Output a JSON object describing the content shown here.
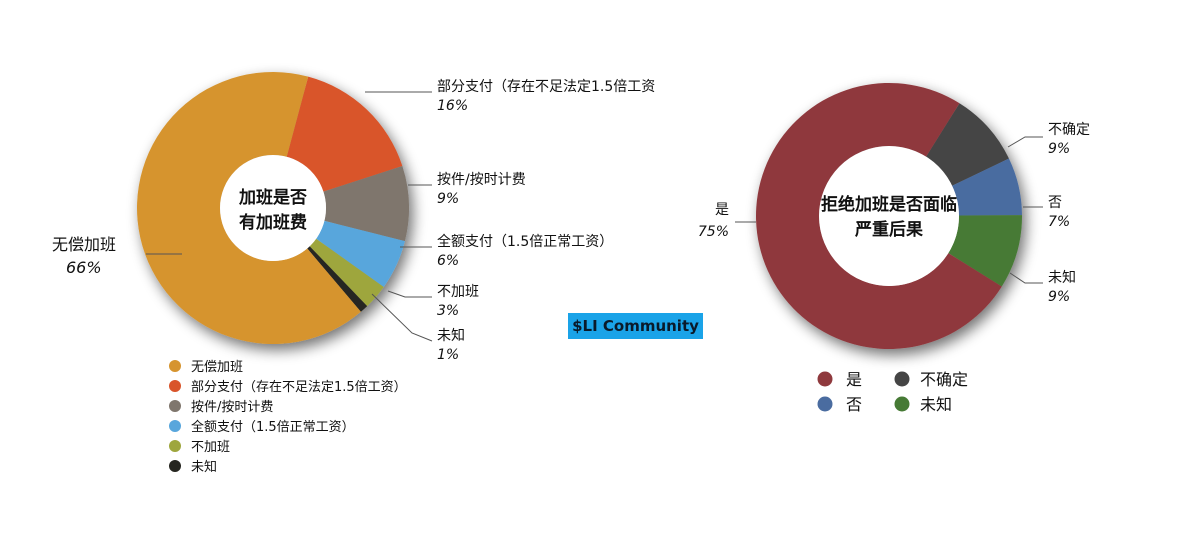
{
  "badge": "$LI Community",
  "chart_data": [
    {
      "type": "donut",
      "title": "加班是否有加班费",
      "title_lines": [
        "加班是否",
        "有加班费"
      ],
      "slices": [
        {
          "label": "无偿加班",
          "legend_label": "无偿加班",
          "value": 66,
          "pct_text": "66%",
          "color": "#d6942f"
        },
        {
          "label": "部分支付（存在不足法定1.5倍工资",
          "legend_label": "部分支付（存在不足法定1.5倍工资）",
          "value": 16,
          "pct_text": "16%",
          "color": "#d9542a"
        },
        {
          "label": "按件/按时计费",
          "legend_label": "按件/按时计费",
          "value": 9,
          "pct_text": "9%",
          "color": "#7f766d"
        },
        {
          "label": "全额支付（1.5倍正常工资）",
          "legend_label": "全额支付（1.5倍正常工资）",
          "value": 6,
          "pct_text": "6%",
          "color": "#58a6dc"
        },
        {
          "label": "不加班",
          "legend_label": "不加班",
          "value": 3,
          "pct_text": "3%",
          "color": "#9ea63d"
        },
        {
          "label": "未知",
          "legend_label": "未知",
          "value": 1,
          "pct_text": "1%",
          "color": "#262620"
        }
      ],
      "legend_placement": "bottom"
    },
    {
      "type": "donut",
      "title": "拒绝加班是否面临严重后果",
      "title_lines": [
        "拒绝加班是否面临",
        "严重后果"
      ],
      "slices": [
        {
          "label": "是",
          "value": 75,
          "pct_text": "75%",
          "color": "#8f393d"
        },
        {
          "label": "不确定",
          "value": 9,
          "pct_text": "9%",
          "color": "#454545"
        },
        {
          "label": "否",
          "value": 7,
          "pct_text": "7%",
          "color": "#4a6ca0"
        },
        {
          "label": "未知",
          "value": 9,
          "pct_text": "9%",
          "color": "#467a35"
        }
      ],
      "slice_order": [
        "是",
        "否",
        "未知",
        "不确定"
      ],
      "legend_placement": "bottom"
    }
  ]
}
